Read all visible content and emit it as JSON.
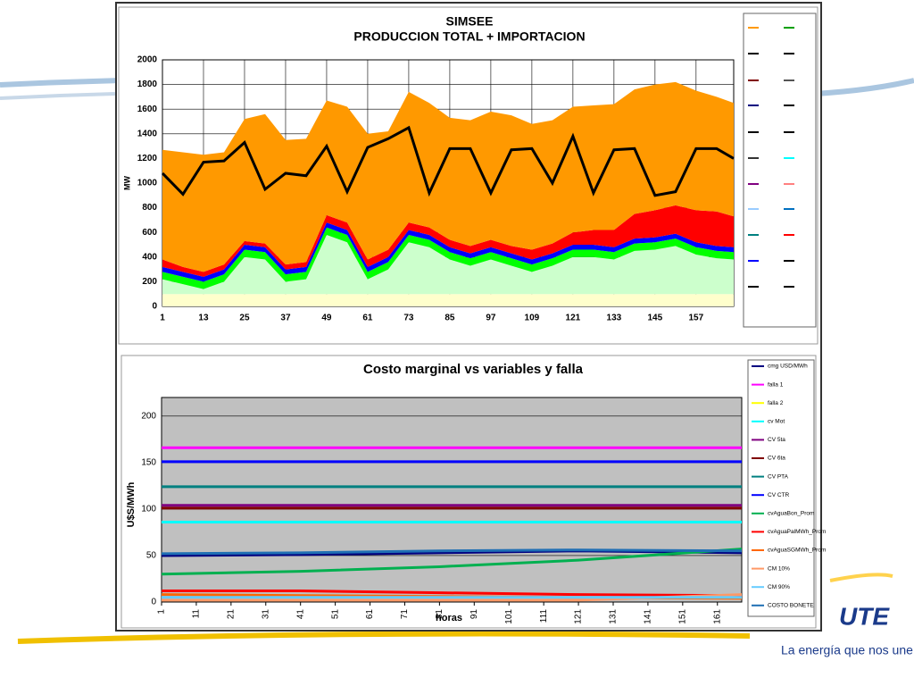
{
  "chart_data": [
    {
      "type": "area",
      "title": "SIMSEE",
      "subtitle": "PRODUCCION TOTAL + IMPORTACION",
      "y_label": "MW",
      "x": [
        1,
        7,
        13,
        19,
        25,
        31,
        37,
        43,
        49,
        55,
        61,
        67,
        73,
        79,
        85,
        91,
        97,
        103,
        109,
        115,
        121,
        127,
        133,
        139,
        145,
        151,
        157,
        163,
        168
      ],
      "xlim": [
        1,
        168
      ],
      "xticks": [
        1,
        13,
        25,
        37,
        49,
        61,
        73,
        85,
        97,
        109,
        121,
        133,
        145,
        157
      ],
      "ylim": [
        0,
        2000
      ],
      "yticks": [
        0,
        200,
        400,
        600,
        800,
        1000,
        1200,
        1400,
        1600,
        1800,
        2000
      ],
      "grid": true,
      "series": [
        {
          "color": "#ffffcc",
          "stacked": true,
          "values": [
            100,
            100,
            100,
            100,
            100,
            100,
            100,
            100,
            100,
            100,
            100,
            100,
            100,
            100,
            100,
            100,
            100,
            100,
            100,
            100,
            100,
            100,
            100,
            100,
            100,
            100,
            100,
            100,
            100
          ]
        },
        {
          "color": "#ccffcc",
          "stacked": true,
          "values": [
            120,
            80,
            40,
            100,
            300,
            280,
            100,
            120,
            480,
            420,
            120,
            200,
            420,
            380,
            280,
            230,
            280,
            230,
            180,
            230,
            300,
            300,
            280,
            350,
            360,
            390,
            320,
            290,
            280
          ]
        },
        {
          "color": "#00ff00",
          "stacked": true,
          "values": [
            60,
            60,
            60,
            60,
            60,
            60,
            60,
            60,
            60,
            60,
            60,
            60,
            60,
            60,
            60,
            60,
            60,
            60,
            60,
            60,
            60,
            60,
            60,
            60,
            60,
            60,
            60,
            60,
            60
          ]
        },
        {
          "color": "#0000ff",
          "stacked": true,
          "values": [
            40,
            40,
            40,
            40,
            40,
            40,
            40,
            40,
            40,
            40,
            40,
            40,
            40,
            40,
            40,
            40,
            40,
            40,
            40,
            40,
            40,
            40,
            40,
            40,
            40,
            40,
            40,
            40,
            40
          ]
        },
        {
          "color": "#ff0000",
          "stacked": true,
          "values": [
            60,
            40,
            40,
            40,
            30,
            30,
            40,
            40,
            60,
            60,
            60,
            60,
            60,
            60,
            60,
            60,
            60,
            60,
            80,
            80,
            100,
            120,
            140,
            200,
            220,
            230,
            260,
            280,
            250
          ]
        },
        {
          "color": "#ff9900",
          "stacked": true,
          "values": [
            890,
            930,
            950,
            910,
            990,
            1050,
            1010,
            1000,
            930,
            940,
            1020,
            960,
            1060,
            1010,
            990,
            1020,
            1040,
            1060,
            1020,
            1000,
            1020,
            1010,
            1020,
            1010,
            1020,
            1000,
            970,
            930,
            920
          ]
        },
        {
          "color": "#000000",
          "stacked": false,
          "values": [
            1080,
            910,
            1170,
            1180,
            1330,
            950,
            1080,
            1060,
            1300,
            930,
            1290,
            1360,
            1450,
            920,
            1280,
            1280,
            920,
            1270,
            1280,
            1000,
            1380,
            920,
            1270,
            1280,
            900,
            930,
            1280,
            1280,
            1200
          ]
        }
      ]
    },
    {
      "type": "line",
      "title": "Costo marginal vs variables y falla",
      "y_label": "U$S/MWh",
      "x_label": "horas",
      "x": [
        1,
        41,
        81,
        121,
        168
      ],
      "xlim": [
        1,
        168
      ],
      "xticks": [
        1,
        11,
        21,
        31,
        41,
        51,
        61,
        71,
        81,
        91,
        101,
        111,
        121,
        131,
        141,
        151,
        161
      ],
      "ylim": [
        0,
        220
      ],
      "yticks": [
        0,
        50,
        100,
        150,
        200
      ],
      "grid": true,
      "series": [
        {
          "name": "cmg USD/MWh",
          "color": "#000080",
          "values": [
            50,
            51,
            53,
            55,
            53
          ]
        },
        {
          "name": "falla 1",
          "color": "#ff00ff",
          "values": [
            166,
            166,
            166,
            166,
            166
          ]
        },
        {
          "name": "falla 2",
          "color": "#ffff00",
          "values": [
            null,
            null,
            null,
            null,
            null
          ]
        },
        {
          "name": "cv Mot",
          "color": "#00ffff",
          "values": [
            86,
            86,
            86,
            86,
            86
          ]
        },
        {
          "name": "CV 5ta",
          "color": "#800080",
          "values": [
            104,
            104,
            104,
            104,
            104
          ]
        },
        {
          "name": "CV 6ta",
          "color": "#800000",
          "values": [
            101,
            101,
            101,
            101,
            101
          ]
        },
        {
          "name": "CV PTA",
          "color": "#008080",
          "values": [
            124,
            124,
            124,
            124,
            124
          ]
        },
        {
          "name": "CV CTR",
          "color": "#0000ff",
          "values": [
            151,
            151,
            151,
            151,
            151
          ]
        },
        {
          "name": "cvAguaBon_Prom",
          "color": "#00b050",
          "values": [
            30,
            33,
            38,
            45,
            57
          ]
        },
        {
          "name": "cvAguaPalMWh_Prom",
          "color": "#ff0000",
          "values": [
            12,
            12,
            10,
            8,
            7
          ]
        },
        {
          "name": "cvAguaSGMWh_Prom",
          "color": "#ff6600",
          "values": [
            8,
            7,
            6,
            5,
            4
          ]
        },
        {
          "name": "CM 10%",
          "color": "#ff9966",
          "values": [
            2,
            2,
            2,
            2,
            8
          ]
        },
        {
          "name": "CM 90%",
          "color": "#66ccff",
          "values": [
            5,
            5,
            5,
            5,
            5
          ]
        },
        {
          "name": "COSTO BONETE",
          "color": "#1f6fb4",
          "values": [
            52,
            53,
            55,
            56,
            55
          ]
        }
      ]
    }
  ],
  "footer": {
    "logo": "UTE",
    "slogan": "La energía que nos une"
  }
}
